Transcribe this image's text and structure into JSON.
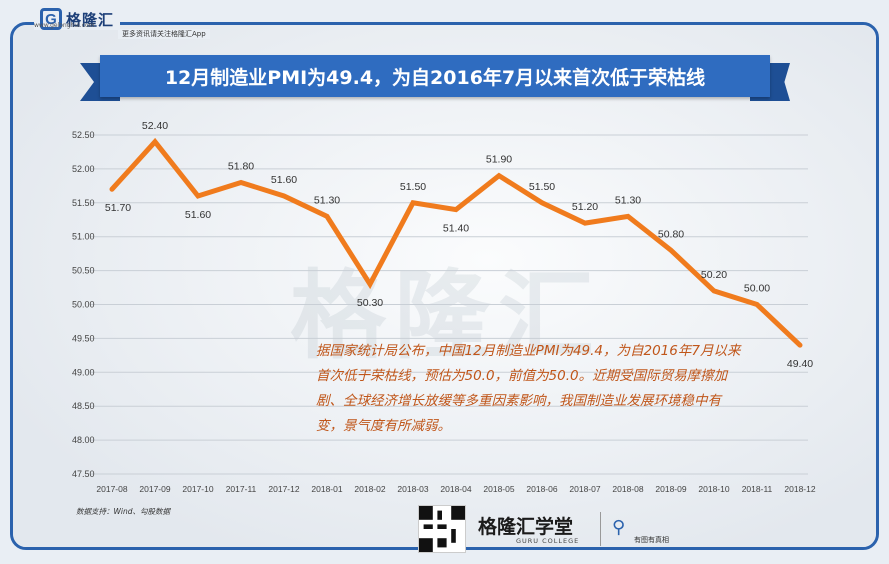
{
  "header": {
    "logo_name": "格隆汇",
    "logo_site": "www.gelonghui.com",
    "logo_tagline": "更多资讯请关注格隆汇App",
    "title": "12月制造业PMI为49.4，为自2016年7月以来首次低于荣枯线"
  },
  "watermark": "格隆汇",
  "annotation": "据国家统计局公布，中国12月制造业PMI为49.4，为自2016年7月以来首次低于荣枯线，预估为50.0，前值为50.0。近期受国际贸易摩擦加剧、全球经济增长放缓等多重因素影响，我国制造业发展环境稳中有变，景气度有所减弱。",
  "source": "数据支持：Wind、勾股数据",
  "footer": {
    "brand": "格隆汇学堂",
    "brand_sub": "GURU COLLEGE",
    "badge": "有图有真相"
  },
  "colors": {
    "line": "#f07b1d",
    "ribbon": "#2f6cc0",
    "frame": "#2b62ad"
  },
  "chart_data": {
    "type": "line",
    "categories": [
      "2017-08",
      "2017-09",
      "2017-10",
      "2017-11",
      "2017-12",
      "2018-01",
      "2018-02",
      "2018-03",
      "2018-04",
      "2018-05",
      "2018-06",
      "2018-07",
      "2018-08",
      "2018-09",
      "2018-10",
      "2018-11",
      "2018-12"
    ],
    "values": [
      51.7,
      52.4,
      51.6,
      51.8,
      51.6,
      51.3,
      50.3,
      51.5,
      51.4,
      51.9,
      51.5,
      51.2,
      51.3,
      50.8,
      50.2,
      50.0,
      49.4
    ],
    "value_labels": [
      "51.70",
      "52.40",
      "51.60",
      "51.80",
      "51.60",
      "51.30",
      "50.30",
      "51.50",
      "51.40",
      "51.90",
      "51.50",
      "51.20",
      "51.30",
      "50.80",
      "50.20",
      "50.00",
      "49.40"
    ],
    "ylim": [
      47.5,
      52.5
    ],
    "yticks": [
      "47.50",
      "48.00",
      "48.50",
      "49.00",
      "49.50",
      "50.00",
      "50.50",
      "51.00",
      "51.50",
      "52.00",
      "52.50"
    ],
    "grid": true,
    "legend": "none"
  }
}
